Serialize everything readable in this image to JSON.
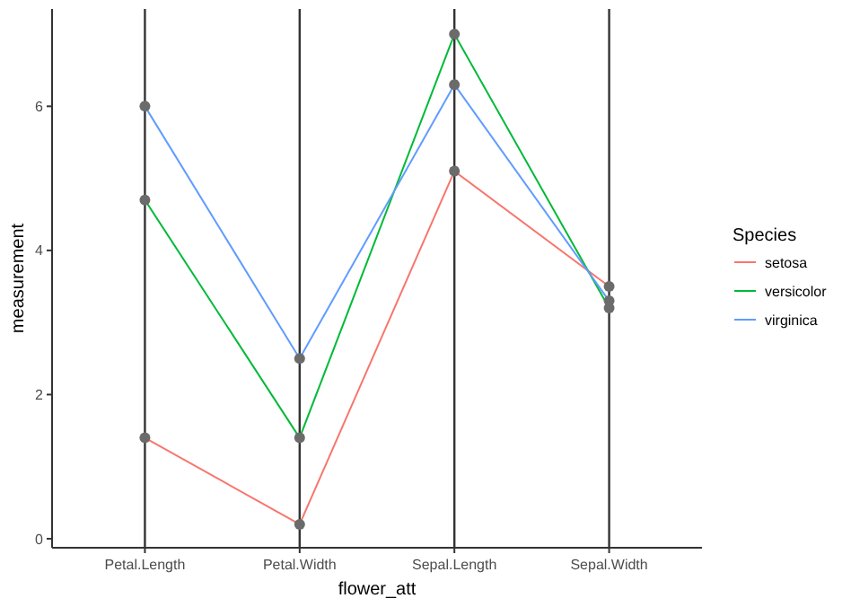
{
  "chart_data": {
    "type": "line",
    "xlabel": "flower_att",
    "ylabel": "measurement",
    "legend_title": "Species",
    "categories": [
      "Petal.Length",
      "Petal.Width",
      "Sepal.Length",
      "Sepal.Width"
    ],
    "series": [
      {
        "name": "setosa",
        "color": "#f8766d",
        "values": [
          1.4,
          0.2,
          5.1,
          3.5
        ]
      },
      {
        "name": "versicolor",
        "color": "#00ba38",
        "values": [
          4.7,
          1.4,
          7.0,
          3.2
        ]
      },
      {
        "name": "virginica",
        "color": "#619cff",
        "values": [
          6.0,
          2.5,
          6.3,
          3.3
        ]
      },
      {
        "type": "scatter",
        "marker": "circle",
        "color": "#6b6b6b",
        "x": [
          "Petal.Length",
          "Petal.Width",
          "Sepal.Length",
          "Sepal.Width",
          "Petal.Length",
          "Petal.Width",
          "Sepal.Length",
          "Sepal.Width",
          "Petal.Length",
          "Petal.Width",
          "Sepal.Length",
          "Sepal.Width"
        ],
        "values": [
          1.4,
          0.2,
          5.1,
          3.5,
          4.7,
          1.4,
          7.0,
          3.2,
          6.0,
          2.5,
          6.3,
          3.3
        ]
      }
    ],
    "ylim": [
      -0.125,
      7.35
    ],
    "yticks": [
      0,
      2,
      4,
      6
    ],
    "grid": "x",
    "legend": "right",
    "line_style": "solid"
  }
}
